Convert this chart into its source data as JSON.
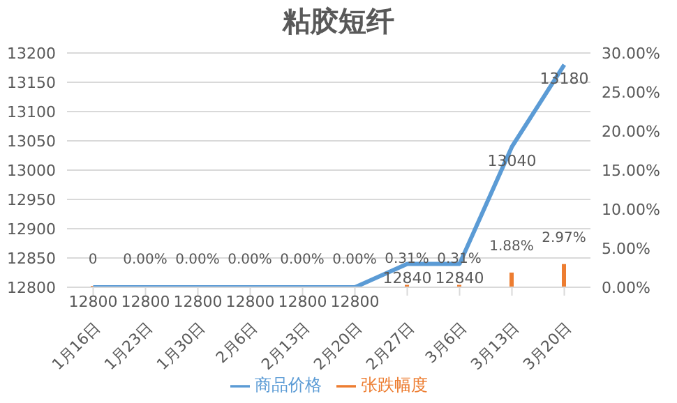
{
  "chart_data": {
    "type": "line",
    "title": "粘胶短纤",
    "categories": [
      "1月16日",
      "1月23日",
      "1月30日",
      "2月6日",
      "2月13日",
      "2月20日",
      "2月27日",
      "3月6日",
      "3月13日",
      "3月20日"
    ],
    "series": [
      {
        "name": "张跌幅度",
        "type": "bar",
        "axis": "y2",
        "color": "#ed7d31",
        "values": [
          0,
          0,
          0,
          0,
          0,
          0,
          0.31,
          0.31,
          1.88,
          2.97
        ],
        "value_labels": [
          "0",
          "0.00%",
          "0.00%",
          "0.00%",
          "0.00%",
          "0.00%",
          "0.31%",
          "0.31%",
          "1.88%",
          "2.97%"
        ]
      },
      {
        "name": "商品价格",
        "color": "#5b9bd5",
        "values": [
          12800,
          12800,
          12800,
          12800,
          12800,
          12800,
          12840,
          12840,
          13040,
          13180
        ],
        "data_labels": true
      }
    ],
    "ylim": [
      12800,
      13200
    ],
    "yticks": [
      12800,
      12850,
      12900,
      12950,
      13000,
      13050,
      13100,
      13150,
      13200
    ],
    "y2lim": [
      0,
      30
    ],
    "y2ticks": [
      {
        "value": 0,
        "label": "0.00%"
      },
      {
        "value": 5,
        "label": "5.00%"
      },
      {
        "value": 10,
        "label": "10.00%"
      },
      {
        "value": 15,
        "label": "15.00%"
      },
      {
        "value": 20,
        "label": "20.00%"
      },
      {
        "value": 25,
        "label": "25.00%"
      },
      {
        "value": 30,
        "label": "30.00%"
      }
    ],
    "grid": "y",
    "legend": "bottom",
    "marker": "none",
    "line_style": "solid"
  }
}
